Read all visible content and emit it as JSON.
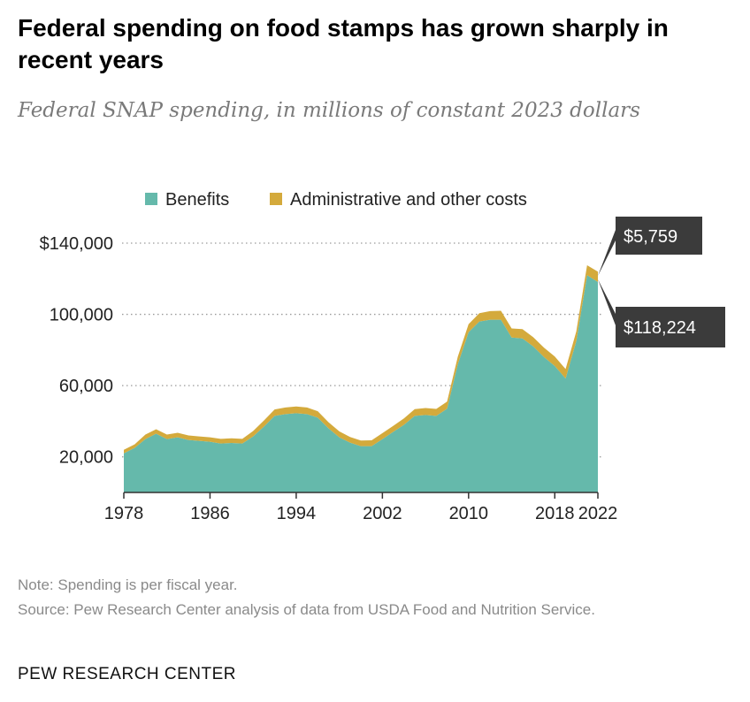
{
  "title": "Federal spending on food stamps has grown sharply in recent years",
  "subtitle": "Federal SNAP spending, in millions of constant 2023 dollars",
  "note": "Note: Spending is per fiscal year.",
  "source": "Source: Pew Research Center analysis of data from USDA Food and Nutrition Service.",
  "brand": "PEW RESEARCH CENTER",
  "colors": {
    "benefits": "#65b9ab",
    "admin": "#d4aa3c",
    "callout": "#3b3b3b",
    "grid": "#9a9a9a"
  },
  "chart_data": {
    "type": "area",
    "stacked": true,
    "title": "Federal spending on food stamps has grown sharply in recent years",
    "subtitle": "Federal SNAP spending, in millions of constant 2023 dollars",
    "xlabel": "",
    "ylabel": "",
    "ylim": [
      0,
      140000
    ],
    "xlim": [
      1978,
      2022
    ],
    "y_ticks": [
      20000,
      60000,
      100000,
      140000
    ],
    "y_tick_labels": [
      "20,000",
      "60,000",
      "100,000",
      "$140,000"
    ],
    "x_ticks": [
      1978,
      1986,
      1994,
      2002,
      2010,
      2018,
      2022
    ],
    "x_tick_labels": [
      "1978",
      "1986",
      "1994",
      "2002",
      "2010",
      "2018",
      "2022"
    ],
    "grid": "horizontal dotted",
    "legend": [
      "Benefits",
      "Administrative and other costs"
    ],
    "legend_position": "top",
    "x": [
      1978,
      1979,
      1980,
      1981,
      1982,
      1983,
      1984,
      1985,
      1986,
      1987,
      1988,
      1989,
      1990,
      1991,
      1992,
      1993,
      1994,
      1995,
      1996,
      1997,
      1998,
      1999,
      2000,
      2001,
      2002,
      2003,
      2004,
      2005,
      2006,
      2007,
      2008,
      2009,
      2010,
      2011,
      2012,
      2013,
      2014,
      2015,
      2016,
      2017,
      2018,
      2019,
      2020,
      2021,
      2022
    ],
    "series": [
      {
        "name": "Benefits",
        "values": [
          22000,
          25000,
          30000,
          33000,
          30000,
          31000,
          29500,
          29000,
          28500,
          27500,
          27800,
          27500,
          31500,
          37000,
          43000,
          44000,
          44500,
          44000,
          42000,
          36000,
          31000,
          28000,
          26000,
          26000,
          30000,
          34000,
          38000,
          43000,
          43500,
          43000,
          47000,
          72000,
          90000,
          96000,
          97000,
          97000,
          87000,
          86500,
          82000,
          76000,
          71000,
          64000,
          85000,
          122000,
          118224
        ]
      },
      {
        "name": "Administrative and other costs",
        "values": [
          2000,
          2000,
          2500,
          2500,
          2500,
          2500,
          2500,
          2500,
          2500,
          2600,
          2600,
          2600,
          3000,
          3400,
          3600,
          3700,
          3800,
          3700,
          3600,
          3400,
          3300,
          3200,
          3200,
          3300,
          3300,
          3400,
          3600,
          3800,
          3900,
          3900,
          4000,
          4200,
          4500,
          4700,
          4800,
          5000,
          5100,
          5200,
          5200,
          5300,
          5300,
          5300,
          5400,
          5600,
          5759
        ]
      }
    ],
    "annotations": [
      {
        "year": 2022,
        "series": "Administrative and other costs",
        "label": "$5,759"
      },
      {
        "year": 2022,
        "series": "Benefits",
        "label": "$118,224"
      }
    ]
  }
}
